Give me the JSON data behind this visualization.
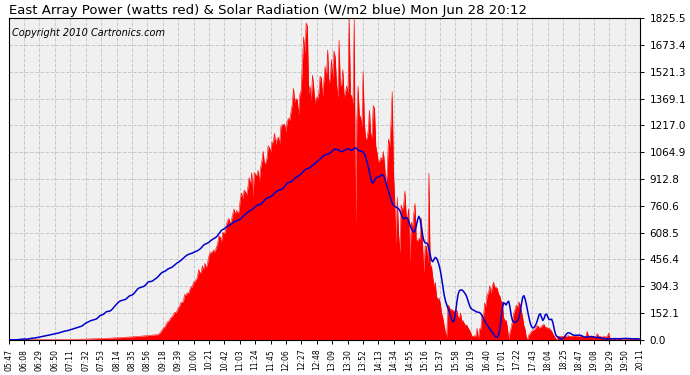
{
  "title": "East Array Power (watts red) & Solar Radiation (W/m2 blue) Mon Jun 28 20:12",
  "copyright": "Copyright 2010 Cartronics.com",
  "yticks": [
    0.0,
    152.1,
    304.3,
    456.4,
    608.5,
    760.6,
    912.8,
    1064.9,
    1217.0,
    1369.1,
    1521.3,
    1673.4,
    1825.5
  ],
  "ylim": [
    0.0,
    1825.5
  ],
  "bg_color": "#ffffff",
  "plot_bg_color": "#f0f0f0",
  "grid_color": "#c8c8c8",
  "x_labels": [
    "05:47",
    "06:08",
    "06:29",
    "06:50",
    "07:11",
    "07:32",
    "07:53",
    "08:14",
    "08:35",
    "08:56",
    "09:18",
    "09:39",
    "10:00",
    "10:21",
    "10:42",
    "11:03",
    "11:24",
    "11:45",
    "12:06",
    "12:27",
    "12:48",
    "13:09",
    "13:30",
    "13:52",
    "14:13",
    "14:34",
    "14:55",
    "15:16",
    "15:37",
    "15:58",
    "16:19",
    "16:40",
    "17:01",
    "17:22",
    "17:43",
    "18:04",
    "18:25",
    "18:47",
    "19:08",
    "19:29",
    "19:50",
    "20:11"
  ],
  "n_points": 500,
  "red_color": "#ff0000",
  "blue_color": "#0000cc",
  "title_fontsize": 9.5,
  "copyright_fontsize": 7,
  "ytick_fontsize": 7.5,
  "xtick_fontsize": 5.5
}
